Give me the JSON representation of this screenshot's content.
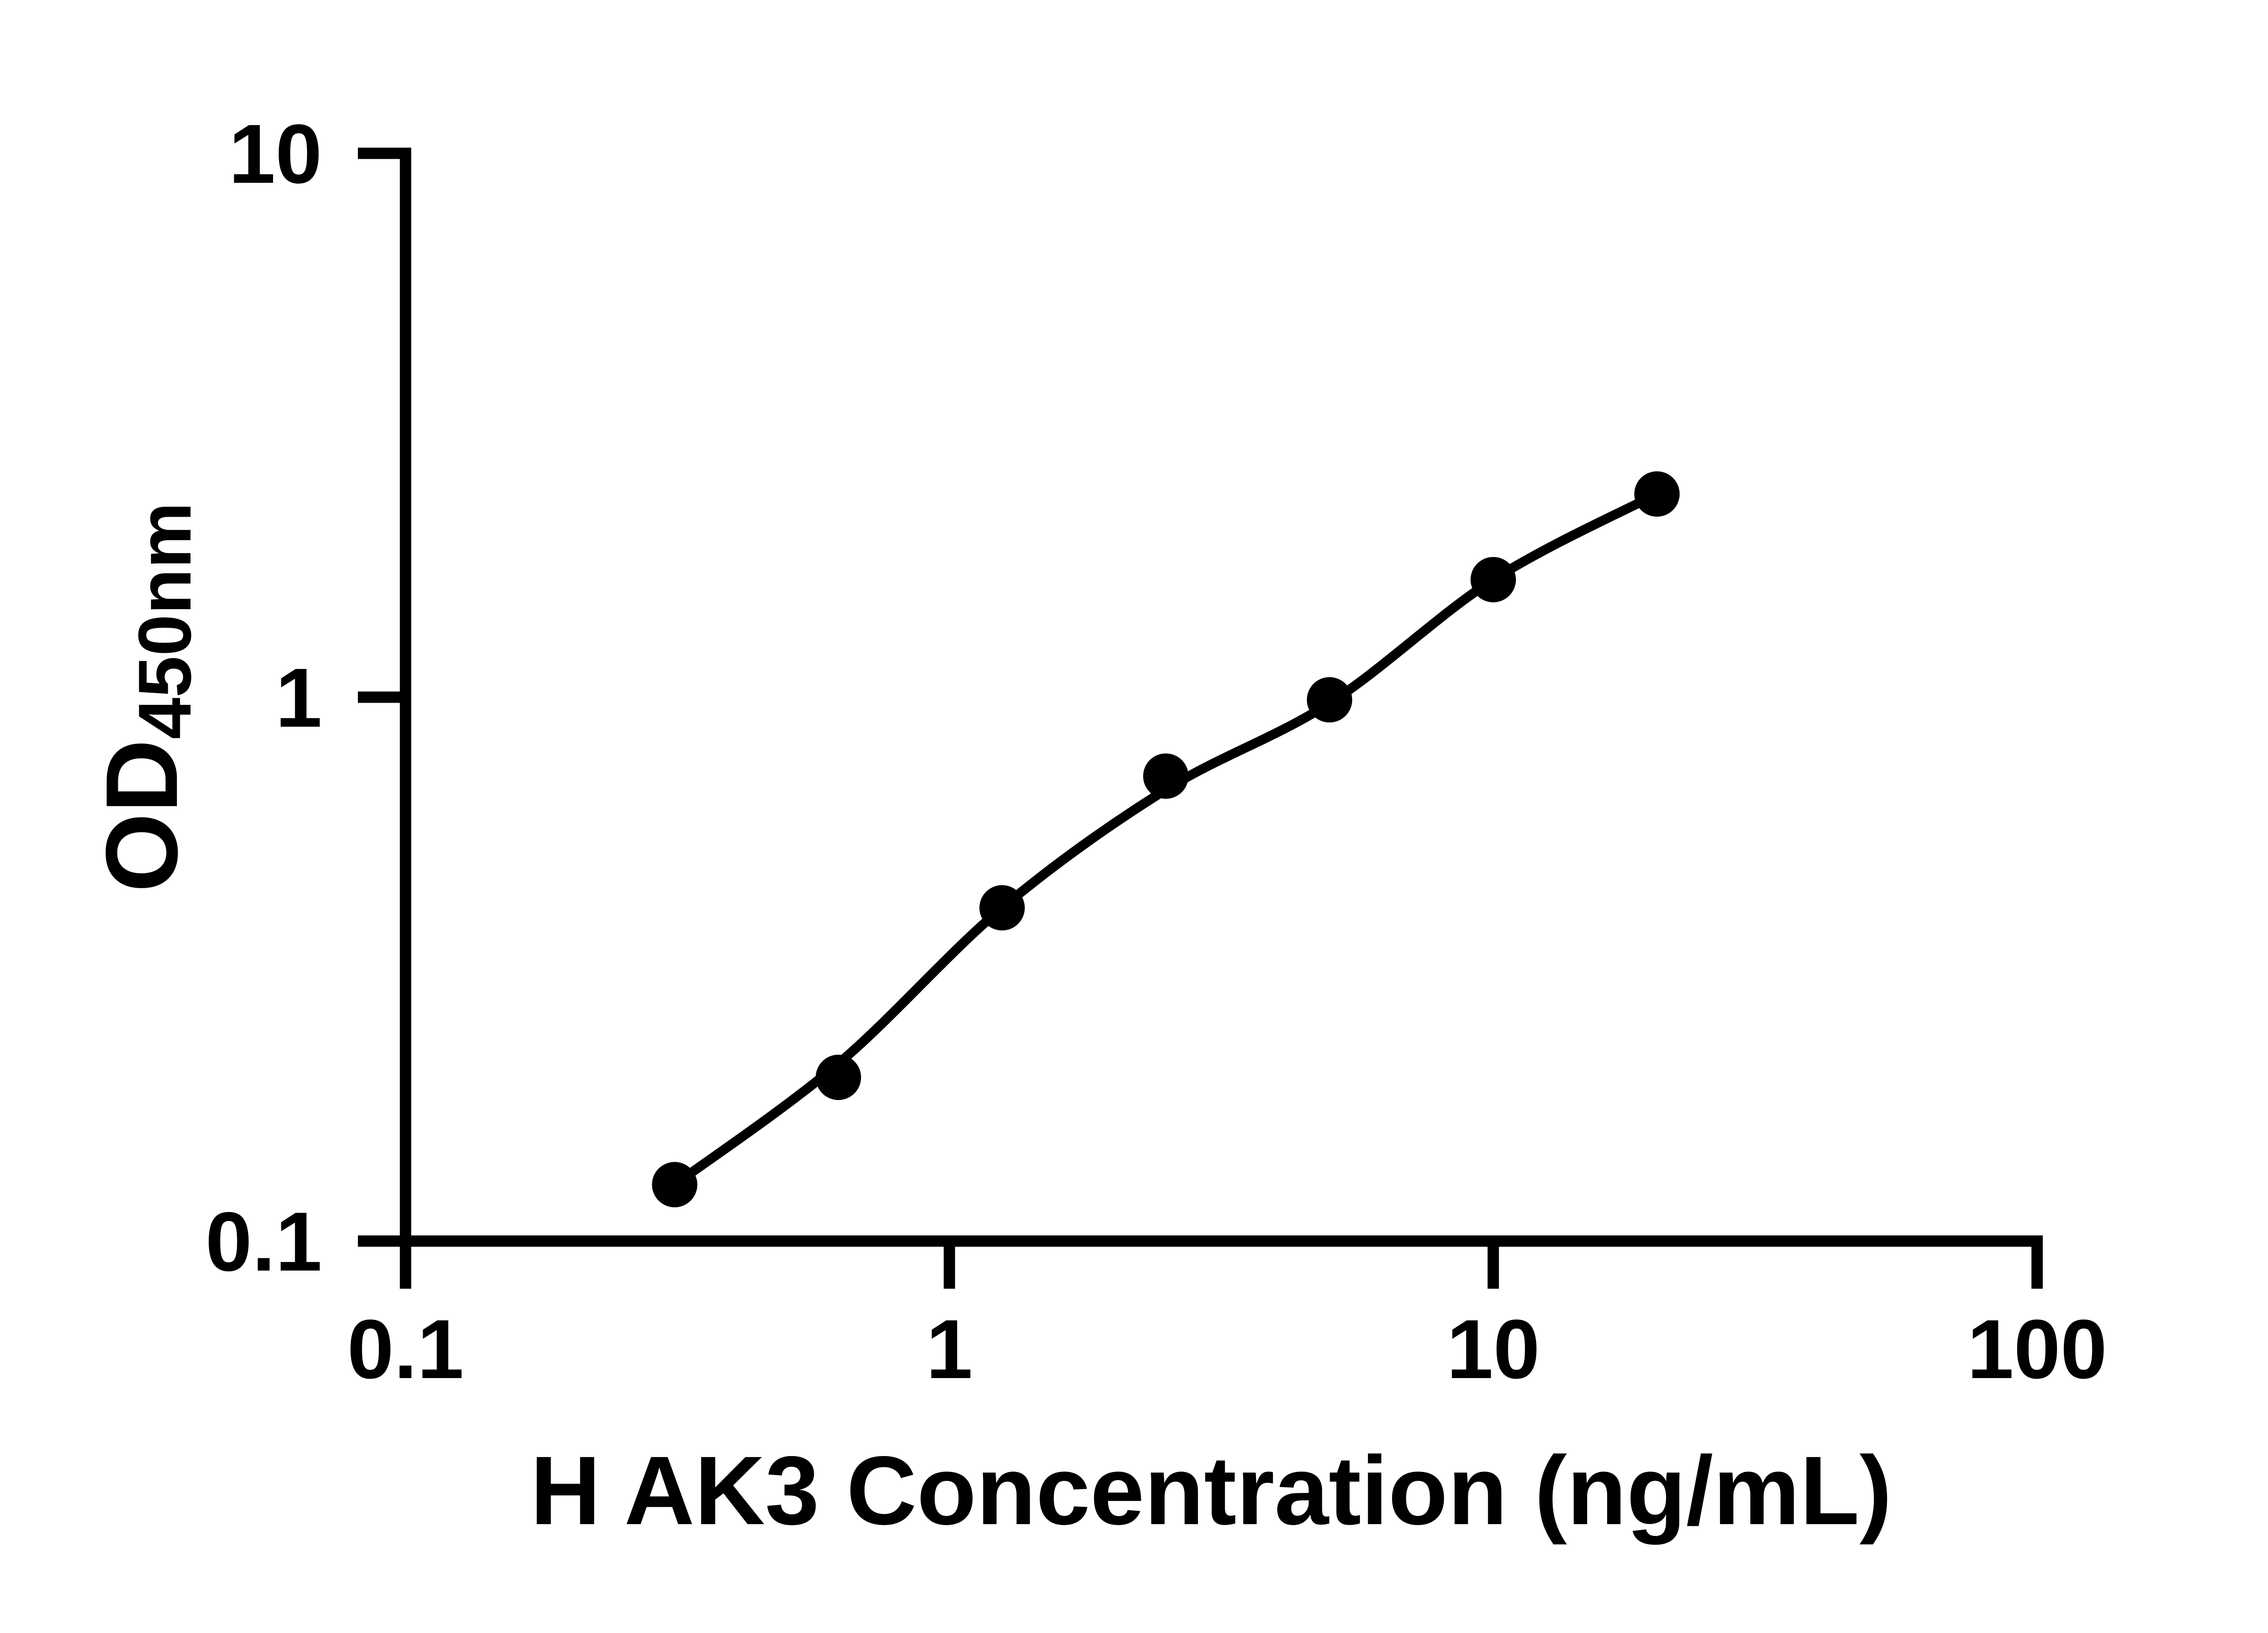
{
  "figure": {
    "background_color": "#ffffff",
    "ink_color": "#000000"
  },
  "chart_data": {
    "type": "scatter",
    "subtype": "elisa-standard-curve",
    "title": "",
    "xlabel": "H AK3 Concentration (ng/mL)",
    "ylabel_main": "OD",
    "ylabel_sub": "450nm",
    "x_scale": "log",
    "y_scale": "log",
    "xlim": [
      0.1,
      100
    ],
    "ylim": [
      0.1,
      10
    ],
    "grid": false,
    "legend": null,
    "x_ticks": [
      {
        "value": 0.1,
        "label": "0.1"
      },
      {
        "value": 1,
        "label": "1"
      },
      {
        "value": 10,
        "label": "10"
      },
      {
        "value": 100,
        "label": "100"
      }
    ],
    "y_ticks": [
      {
        "value": 0.1,
        "label": "0.1"
      },
      {
        "value": 1,
        "label": "1"
      },
      {
        "value": 10,
        "label": "10"
      }
    ],
    "series": [
      {
        "name": "standard-points",
        "marker": {
          "shape": "circle",
          "radius_px": 50,
          "color": "#000000"
        },
        "points": [
          {
            "x": 0.3125,
            "od": 0.127
          },
          {
            "x": 0.625,
            "od": 0.2
          },
          {
            "x": 1.25,
            "od": 0.41
          },
          {
            "x": 2.5,
            "od": 0.716
          },
          {
            "x": 5,
            "od": 0.989
          },
          {
            "x": 10,
            "od": 1.645
          },
          {
            "x": 20,
            "od": 2.364
          }
        ]
      }
    ],
    "fit_curve": [
      {
        "x": 0.3125,
        "od": 0.127
      },
      {
        "x": 0.625,
        "od": 0.212
      },
      {
        "x": 1.25,
        "od": 0.41
      },
      {
        "x": 2.5,
        "od": 0.676
      },
      {
        "x": 5,
        "od": 0.975
      },
      {
        "x": 10,
        "od": 1.645
      },
      {
        "x": 20,
        "od": 2.364
      }
    ]
  }
}
